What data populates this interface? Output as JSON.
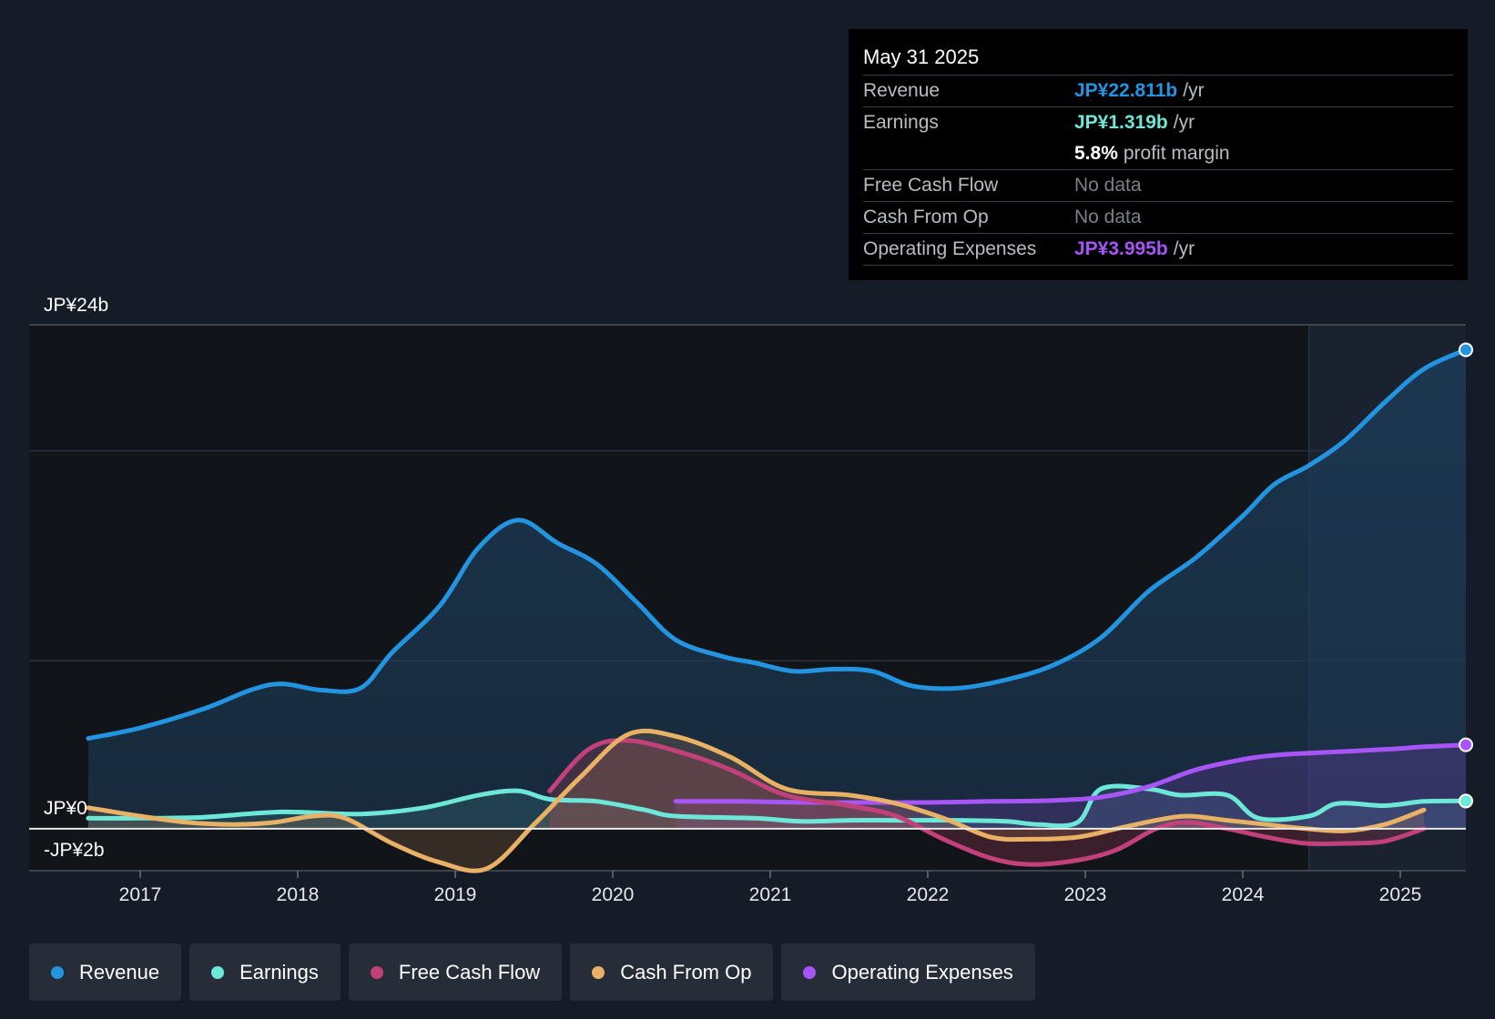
{
  "tooltip": {
    "date": "May 31 2025",
    "rows": {
      "revenue": {
        "label": "Revenue",
        "value": "JP¥22.811b",
        "unit": "/yr",
        "color": "#2394df"
      },
      "earnings": {
        "label": "Earnings",
        "value": "JP¥1.319b",
        "unit": "/yr",
        "color": "#6de8d8"
      },
      "margin": {
        "value": "5.8%",
        "text": "profit margin"
      },
      "fcf": {
        "label": "Free Cash Flow",
        "value": "No data"
      },
      "cfo": {
        "label": "Cash From Op",
        "value": "No data"
      },
      "opex": {
        "label": "Operating Expenses",
        "value": "JP¥3.995b",
        "unit": "/yr",
        "color": "#a855f7"
      }
    }
  },
  "legend": [
    {
      "key": "revenue",
      "label": "Revenue",
      "color": "#2394df"
    },
    {
      "key": "earnings",
      "label": "Earnings",
      "color": "#6de8d8"
    },
    {
      "key": "fcf",
      "label": "Free Cash Flow",
      "color": "#c2417a"
    },
    {
      "key": "cfo",
      "label": "Cash From Op",
      "color": "#e9b165"
    },
    {
      "key": "opex",
      "label": "Operating Expenses",
      "color": "#a855f7"
    }
  ],
  "chart_data": {
    "type": "line",
    "title": "",
    "units": "JP¥ billions",
    "ylim": [
      -2,
      24
    ],
    "y_labels": {
      "top": "JP¥24b",
      "zero": "JP¥0",
      "bottom": "-JP¥2b"
    },
    "x_ticks": [
      "2017",
      "2018",
      "2019",
      "2020",
      "2021",
      "2022",
      "2023",
      "2024",
      "2025"
    ],
    "x_range": [
      2016.55,
      2025.42
    ],
    "forecast_start": 2024.42,
    "series": [
      {
        "key": "revenue",
        "name": "Revenue",
        "color": "#2394df",
        "x": [
          2016.67,
          2017.0,
          2017.4,
          2017.7,
          2017.9,
          2018.15,
          2018.4,
          2018.6,
          2018.9,
          2019.15,
          2019.4,
          2019.65,
          2019.9,
          2020.15,
          2020.4,
          2020.7,
          2020.9,
          2021.15,
          2021.4,
          2021.65,
          2021.9,
          2022.2,
          2022.5,
          2022.8,
          2023.1,
          2023.4,
          2023.7,
          2024.0,
          2024.2,
          2024.42,
          2024.65,
          2024.9,
          2025.15,
          2025.42
        ],
        "values": [
          4.3,
          4.8,
          5.7,
          6.6,
          6.9,
          6.6,
          6.7,
          8.4,
          10.6,
          13.4,
          14.7,
          13.6,
          12.6,
          10.8,
          9.0,
          8.2,
          7.9,
          7.5,
          7.6,
          7.5,
          6.8,
          6.7,
          7.1,
          7.8,
          9.1,
          11.3,
          12.9,
          14.9,
          16.4,
          17.3,
          18.5,
          20.3,
          21.9,
          22.811
        ]
      },
      {
        "key": "earnings",
        "name": "Earnings",
        "color": "#6de8d8",
        "x": [
          2016.67,
          2017.0,
          2017.4,
          2017.9,
          2018.4,
          2018.8,
          2019.15,
          2019.4,
          2019.6,
          2019.9,
          2020.2,
          2020.4,
          2020.9,
          2021.2,
          2021.5,
          2021.8,
          2022.2,
          2022.5,
          2022.7,
          2022.95,
          2023.1,
          2023.4,
          2023.6,
          2023.9,
          2024.1,
          2024.42,
          2024.6,
          2024.9,
          2025.15,
          2025.42
        ],
        "values": [
          0.5,
          0.5,
          0.55,
          0.8,
          0.7,
          1.0,
          1.6,
          1.8,
          1.4,
          1.3,
          0.9,
          0.6,
          0.5,
          0.35,
          0.4,
          0.4,
          0.4,
          0.35,
          0.2,
          0.3,
          1.9,
          1.9,
          1.6,
          1.6,
          0.5,
          0.6,
          1.2,
          1.1,
          1.3,
          1.319
        ]
      },
      {
        "key": "fcf",
        "name": "Free Cash Flow",
        "color": "#c2417a",
        "x": [
          2019.6,
          2019.85,
          2020.1,
          2020.45,
          2020.75,
          2021.1,
          2021.5,
          2021.8,
          2022.1,
          2022.4,
          2022.65,
          2022.95,
          2023.2,
          2023.45,
          2023.65,
          2023.9,
          2024.15,
          2024.4,
          2024.65,
          2024.9,
          2025.15
        ],
        "values": [
          1.8,
          3.8,
          4.2,
          3.6,
          2.8,
          1.6,
          1.1,
          0.6,
          -0.5,
          -1.4,
          -1.7,
          -1.5,
          -1.0,
          0.0,
          0.3,
          0.0,
          -0.4,
          -0.7,
          -0.7,
          -0.6,
          0.0
        ]
      },
      {
        "key": "cfo",
        "name": "Cash From Op",
        "color": "#e9b165",
        "x": [
          2016.67,
          2017.0,
          2017.3,
          2017.6,
          2017.85,
          2018.1,
          2018.3,
          2018.6,
          2018.9,
          2019.2,
          2019.5,
          2019.8,
          2020.1,
          2020.4,
          2020.75,
          2021.1,
          2021.5,
          2021.8,
          2022.1,
          2022.4,
          2022.65,
          2022.95,
          2023.2,
          2023.45,
          2023.65,
          2023.9,
          2024.15,
          2024.4,
          2024.65,
          2024.9,
          2025.15
        ],
        "values": [
          1.0,
          0.6,
          0.3,
          0.2,
          0.3,
          0.6,
          0.5,
          -0.7,
          -1.6,
          -1.9,
          0.2,
          2.5,
          4.5,
          4.4,
          3.4,
          1.9,
          1.6,
          1.2,
          0.5,
          -0.4,
          -0.5,
          -0.4,
          0.0,
          0.4,
          0.6,
          0.4,
          0.2,
          0.0,
          -0.1,
          0.2,
          0.9
        ]
      },
      {
        "key": "opex",
        "name": "Operating Expenses",
        "color": "#a855f7",
        "x": [
          2020.4,
          2020.8,
          2021.2,
          2021.6,
          2022.0,
          2022.4,
          2022.8,
          2023.1,
          2023.4,
          2023.7,
          2024.0,
          2024.2,
          2024.42,
          2024.7,
          2024.95,
          2025.15,
          2025.42
        ],
        "values": [
          1.3,
          1.3,
          1.25,
          1.25,
          1.25,
          1.3,
          1.35,
          1.5,
          2.0,
          2.8,
          3.3,
          3.5,
          3.6,
          3.7,
          3.8,
          3.9,
          3.995
        ]
      }
    ]
  }
}
